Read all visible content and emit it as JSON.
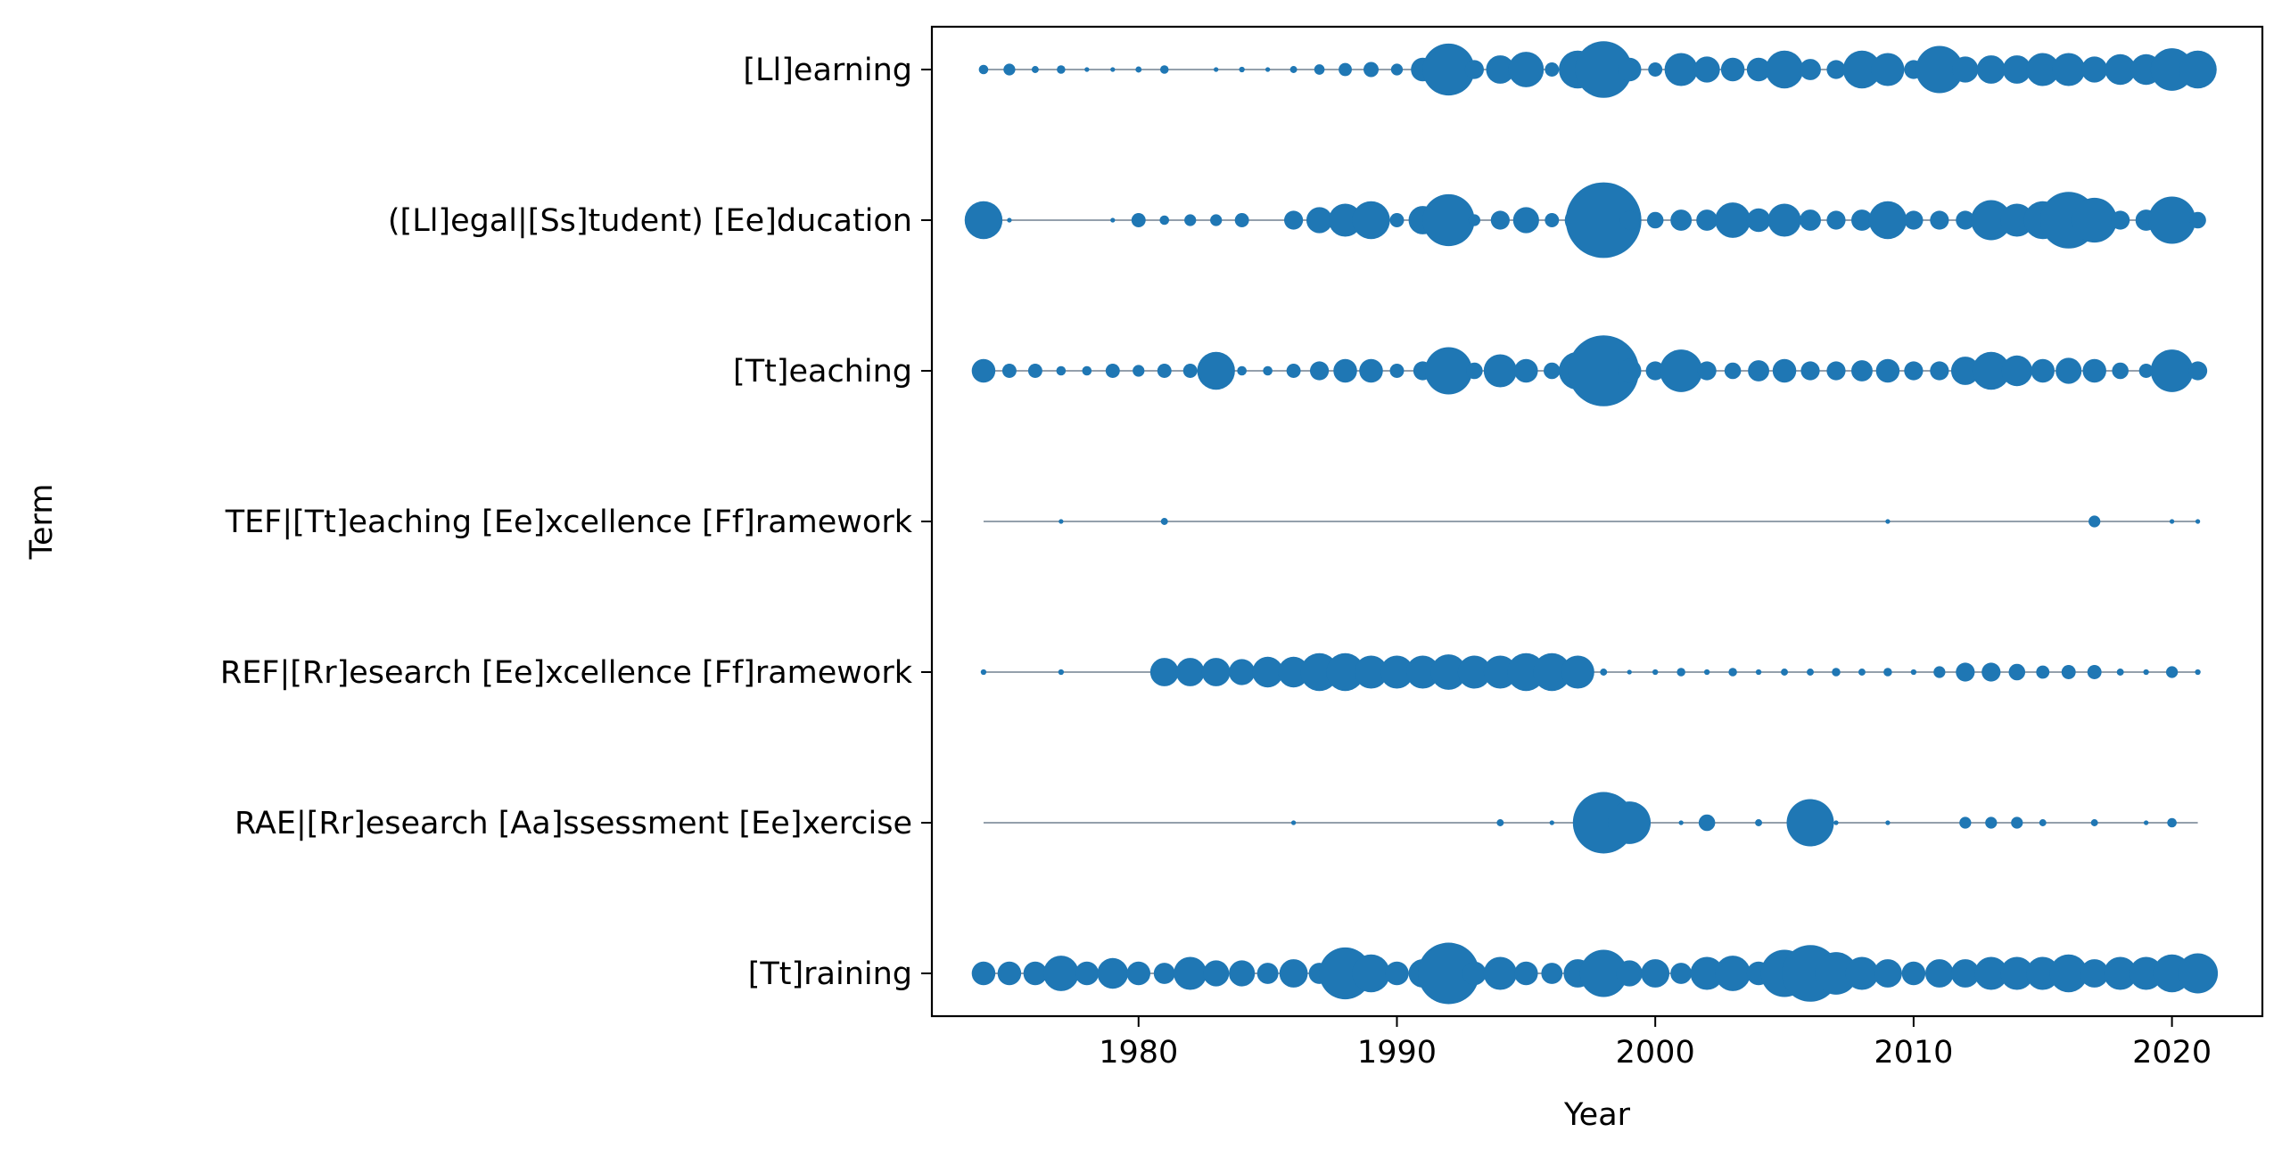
{
  "chart_data": {
    "type": "scatter",
    "xlabel": "Year",
    "ylabel": "Term",
    "xlim": [
      1972,
      2023.5
    ],
    "x_ticks": [
      1980,
      1990,
      2000,
      2010,
      2020
    ],
    "grid": false,
    "legend": "none",
    "marker_color": "#1f77b4",
    "line_color": "#708090",
    "size_note_hidden": true,
    "terms": [
      "[Ll]earning",
      "([Ll]egal|[Ss]tudent) [Ee]ducation",
      "[Tt]eaching",
      "TEF|[Tt]eaching [Ee]xcellence [Ff]ramework",
      "REF|[Rr]esearch [Ee]xcellence [Ff]ramework",
      "RAE|[Rr]esearch [Aa]ssessment [Ee]xercise",
      "[Tt]raining"
    ],
    "series": [
      {
        "term_index": 0,
        "line": [
          1974,
          2021
        ],
        "points": [
          [
            1974,
            2
          ],
          [
            1975,
            2.5
          ],
          [
            1976,
            1.5
          ],
          [
            1977,
            1.8
          ],
          [
            1978,
            1
          ],
          [
            1979,
            1
          ],
          [
            1980,
            1.3
          ],
          [
            1981,
            1.8
          ],
          [
            1983,
            1
          ],
          [
            1984,
            1.2
          ],
          [
            1985,
            1
          ],
          [
            1986,
            1.5
          ],
          [
            1987,
            2.2
          ],
          [
            1988,
            2.8
          ],
          [
            1989,
            3.2
          ],
          [
            1990,
            2.5
          ],
          [
            1991,
            5
          ],
          [
            1992,
            11
          ],
          [
            1993,
            4
          ],
          [
            1994,
            6
          ],
          [
            1995,
            7.5
          ],
          [
            1996,
            3
          ],
          [
            1997,
            8
          ],
          [
            1998,
            12
          ],
          [
            1999,
            5
          ],
          [
            2000,
            3
          ],
          [
            2001,
            7
          ],
          [
            2002,
            5.5
          ],
          [
            2003,
            5
          ],
          [
            2004,
            5
          ],
          [
            2005,
            8
          ],
          [
            2006,
            4.5
          ],
          [
            2007,
            4
          ],
          [
            2008,
            8
          ],
          [
            2009,
            7
          ],
          [
            2010,
            4
          ],
          [
            2011,
            10
          ],
          [
            2012,
            5.5
          ],
          [
            2013,
            6
          ],
          [
            2014,
            6
          ],
          [
            2015,
            7
          ],
          [
            2016,
            7
          ],
          [
            2017,
            5.5
          ],
          [
            2018,
            6.5
          ],
          [
            2019,
            6.5
          ],
          [
            2020,
            9
          ],
          [
            2021,
            8
          ]
        ]
      },
      {
        "term_index": 1,
        "line": [
          1974,
          2021
        ],
        "points": [
          [
            1974,
            8
          ],
          [
            1975,
            1
          ],
          [
            1979,
            1
          ],
          [
            1980,
            3
          ],
          [
            1981,
            2
          ],
          [
            1982,
            2.5
          ],
          [
            1983,
            2.5
          ],
          [
            1984,
            3
          ],
          [
            1986,
            4
          ],
          [
            1987,
            5.5
          ],
          [
            1988,
            7
          ],
          [
            1989,
            8
          ],
          [
            1990,
            3
          ],
          [
            1991,
            6
          ],
          [
            1992,
            11
          ],
          [
            1993,
            2.5
          ],
          [
            1994,
            4
          ],
          [
            1995,
            5.5
          ],
          [
            1996,
            3
          ],
          [
            1997,
            5.5
          ],
          [
            1998,
            16
          ],
          [
            1999,
            4
          ],
          [
            2000,
            3.5
          ],
          [
            2001,
            4.5
          ],
          [
            2002,
            4.5
          ],
          [
            2003,
            7.5
          ],
          [
            2004,
            5
          ],
          [
            2005,
            7
          ],
          [
            2006,
            4.5
          ],
          [
            2007,
            4
          ],
          [
            2008,
            4.5
          ],
          [
            2009,
            8
          ],
          [
            2010,
            4
          ],
          [
            2011,
            4
          ],
          [
            2012,
            4
          ],
          [
            2013,
            8.5
          ],
          [
            2014,
            7
          ],
          [
            2015,
            8
          ],
          [
            2016,
            12
          ],
          [
            2017,
            9.5
          ],
          [
            2018,
            4
          ],
          [
            2019,
            4.5
          ],
          [
            2020,
            10
          ],
          [
            2021,
            3.5
          ]
        ]
      },
      {
        "term_index": 2,
        "line": [
          1974,
          2021
        ],
        "points": [
          [
            1974,
            5
          ],
          [
            1975,
            3
          ],
          [
            1976,
            3
          ],
          [
            1977,
            2
          ],
          [
            1978,
            2
          ],
          [
            1979,
            3
          ],
          [
            1980,
            2.5
          ],
          [
            1981,
            3
          ],
          [
            1982,
            3
          ],
          [
            1983,
            8
          ],
          [
            1984,
            2
          ],
          [
            1985,
            2
          ],
          [
            1986,
            3
          ],
          [
            1987,
            4
          ],
          [
            1988,
            5
          ],
          [
            1989,
            5
          ],
          [
            1990,
            3
          ],
          [
            1991,
            4
          ],
          [
            1992,
            10
          ],
          [
            1993,
            3.5
          ],
          [
            1994,
            7
          ],
          [
            1995,
            5
          ],
          [
            1996,
            3.5
          ],
          [
            1997,
            8
          ],
          [
            1998,
            15
          ],
          [
            1999,
            5
          ],
          [
            2000,
            4
          ],
          [
            2001,
            9
          ],
          [
            2002,
            4
          ],
          [
            2003,
            3.5
          ],
          [
            2004,
            4.5
          ],
          [
            2005,
            5
          ],
          [
            2006,
            4
          ],
          [
            2007,
            4
          ],
          [
            2008,
            4.5
          ],
          [
            2009,
            5
          ],
          [
            2010,
            4
          ],
          [
            2011,
            4
          ],
          [
            2012,
            6
          ],
          [
            2013,
            8
          ],
          [
            2014,
            6.5
          ],
          [
            2015,
            5
          ],
          [
            2016,
            5.5
          ],
          [
            2017,
            5
          ],
          [
            2018,
            3.5
          ],
          [
            2019,
            3
          ],
          [
            2020,
            9
          ],
          [
            2021,
            4
          ]
        ]
      },
      {
        "term_index": 3,
        "line": [
          1974,
          2021
        ],
        "points": [
          [
            1977,
            1
          ],
          [
            1981,
            1.5
          ],
          [
            2009,
            1
          ],
          [
            2017,
            2.5
          ],
          [
            2020,
            1
          ],
          [
            2021,
            1
          ]
        ]
      },
      {
        "term_index": 4,
        "line": [
          1974,
          2021
        ],
        "points": [
          [
            1974,
            1.2
          ],
          [
            1977,
            1.2
          ],
          [
            1981,
            6
          ],
          [
            1982,
            6
          ],
          [
            1983,
            6
          ],
          [
            1984,
            5.5
          ],
          [
            1985,
            6.5
          ],
          [
            1986,
            6.5
          ],
          [
            1987,
            8
          ],
          [
            1988,
            8
          ],
          [
            1989,
            7
          ],
          [
            1990,
            7
          ],
          [
            1991,
            7
          ],
          [
            1992,
            7.5
          ],
          [
            1993,
            7
          ],
          [
            1994,
            7
          ],
          [
            1995,
            8
          ],
          [
            1996,
            8
          ],
          [
            1997,
            7
          ],
          [
            1998,
            1.5
          ],
          [
            1999,
            1
          ],
          [
            2000,
            1.2
          ],
          [
            2001,
            1.8
          ],
          [
            2002,
            1.2
          ],
          [
            2003,
            1.8
          ],
          [
            2004,
            1.2
          ],
          [
            2005,
            1.5
          ],
          [
            2006,
            1.5
          ],
          [
            2007,
            1.8
          ],
          [
            2008,
            1.5
          ],
          [
            2009,
            1.8
          ],
          [
            2010,
            1.2
          ],
          [
            2011,
            2.5
          ],
          [
            2012,
            4
          ],
          [
            2013,
            4
          ],
          [
            2014,
            3.5
          ],
          [
            2015,
            2.8
          ],
          [
            2016,
            3
          ],
          [
            2017,
            3
          ],
          [
            2018,
            1.5
          ],
          [
            2019,
            1.2
          ],
          [
            2020,
            2.5
          ],
          [
            2021,
            1.2
          ]
        ]
      },
      {
        "term_index": 5,
        "line": [
          1974,
          2021
        ],
        "points": [
          [
            1986,
            1
          ],
          [
            1994,
            1.5
          ],
          [
            1996,
            1
          ],
          [
            1998,
            13
          ],
          [
            1999,
            9
          ],
          [
            2001,
            1
          ],
          [
            2002,
            3.5
          ],
          [
            2004,
            1.5
          ],
          [
            2006,
            10
          ],
          [
            2007,
            1
          ],
          [
            2009,
            1
          ],
          [
            2012,
            2.5
          ],
          [
            2013,
            2.5
          ],
          [
            2014,
            2.5
          ],
          [
            2015,
            1.5
          ],
          [
            2017,
            1.5
          ],
          [
            2019,
            1
          ],
          [
            2020,
            2
          ]
        ]
      },
      {
        "term_index": 6,
        "line": [
          1974,
          2021
        ],
        "points": [
          [
            1974,
            5
          ],
          [
            1975,
            5
          ],
          [
            1976,
            5
          ],
          [
            1977,
            7.5
          ],
          [
            1978,
            5
          ],
          [
            1979,
            6.5
          ],
          [
            1980,
            5
          ],
          [
            1981,
            4.5
          ],
          [
            1982,
            7
          ],
          [
            1983,
            5.5
          ],
          [
            1984,
            5.5
          ],
          [
            1985,
            4.5
          ],
          [
            1986,
            6
          ],
          [
            1987,
            4.5
          ],
          [
            1988,
            11
          ],
          [
            1989,
            8
          ],
          [
            1990,
            5
          ],
          [
            1991,
            6
          ],
          [
            1992,
            13
          ],
          [
            1993,
            5
          ],
          [
            1994,
            7
          ],
          [
            1995,
            5
          ],
          [
            1996,
            4.5
          ],
          [
            1997,
            6
          ],
          [
            1998,
            10
          ],
          [
            1999,
            5.5
          ],
          [
            2000,
            6
          ],
          [
            2001,
            4.5
          ],
          [
            2002,
            7
          ],
          [
            2003,
            7.5
          ],
          [
            2004,
            5
          ],
          [
            2005,
            10
          ],
          [
            2006,
            12
          ],
          [
            2007,
            9
          ],
          [
            2008,
            7
          ],
          [
            2009,
            6
          ],
          [
            2010,
            5
          ],
          [
            2011,
            6
          ],
          [
            2012,
            6
          ],
          [
            2013,
            7
          ],
          [
            2014,
            7
          ],
          [
            2015,
            7
          ],
          [
            2016,
            8
          ],
          [
            2017,
            6
          ],
          [
            2018,
            7
          ],
          [
            2019,
            7
          ],
          [
            2020,
            8
          ],
          [
            2021,
            8.5
          ]
        ]
      }
    ]
  }
}
